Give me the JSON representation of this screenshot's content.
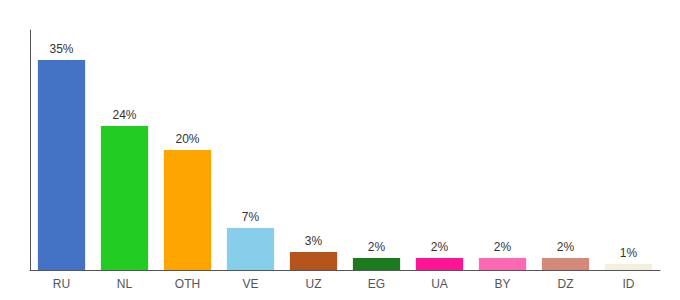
{
  "chart_data": {
    "type": "bar",
    "categories": [
      "RU",
      "NL",
      "OTH",
      "VE",
      "UZ",
      "EG",
      "UA",
      "BY",
      "DZ",
      "ID"
    ],
    "values": [
      35,
      24,
      20,
      7,
      3,
      2,
      2,
      2,
      2,
      1
    ],
    "value_labels": [
      "35%",
      "24%",
      "20%",
      "7%",
      "3%",
      "2%",
      "2%",
      "2%",
      "2%",
      "1%"
    ],
    "colors": [
      "#4472c4",
      "#22cc22",
      "#ffa500",
      "#87ceeb",
      "#b5541b",
      "#1e7a1e",
      "#ff1493",
      "#ff69b4",
      "#d4897a",
      "#f5f0dc"
    ],
    "ylim": [
      0,
      40
    ],
    "data_labels": true,
    "tick_labels": "x",
    "grid": false
  }
}
